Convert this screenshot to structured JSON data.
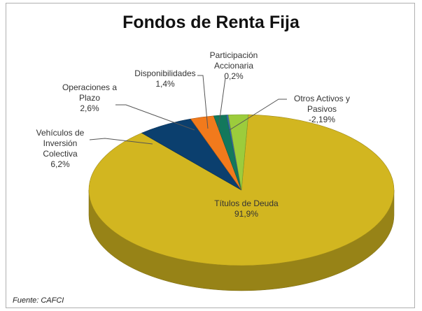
{
  "chart_data": {
    "type": "pie3d",
    "title": "Fondos de Renta Fija",
    "categories": [
      "Títulos de Deuda",
      "Vehículos de Inversión Colectiva",
      "Operaciones a Plazo",
      "Disponibilidades",
      "Participación Accionaria",
      "Otros Activos y Pasivos"
    ],
    "values": [
      91.9,
      6.2,
      2.6,
      1.4,
      0.2,
      -2.19
    ],
    "value_labels": [
      "91,9%",
      "6,2%",
      "2,6%",
      "1,4%",
      "0,2%",
      "-2,19%"
    ],
    "colors": [
      "#d2b620",
      "#0b3f6e",
      "#f27a1c",
      "#13785c",
      "#3a6fa8",
      "#9ccc3c"
    ],
    "source": "Fuente: CAFCI"
  }
}
